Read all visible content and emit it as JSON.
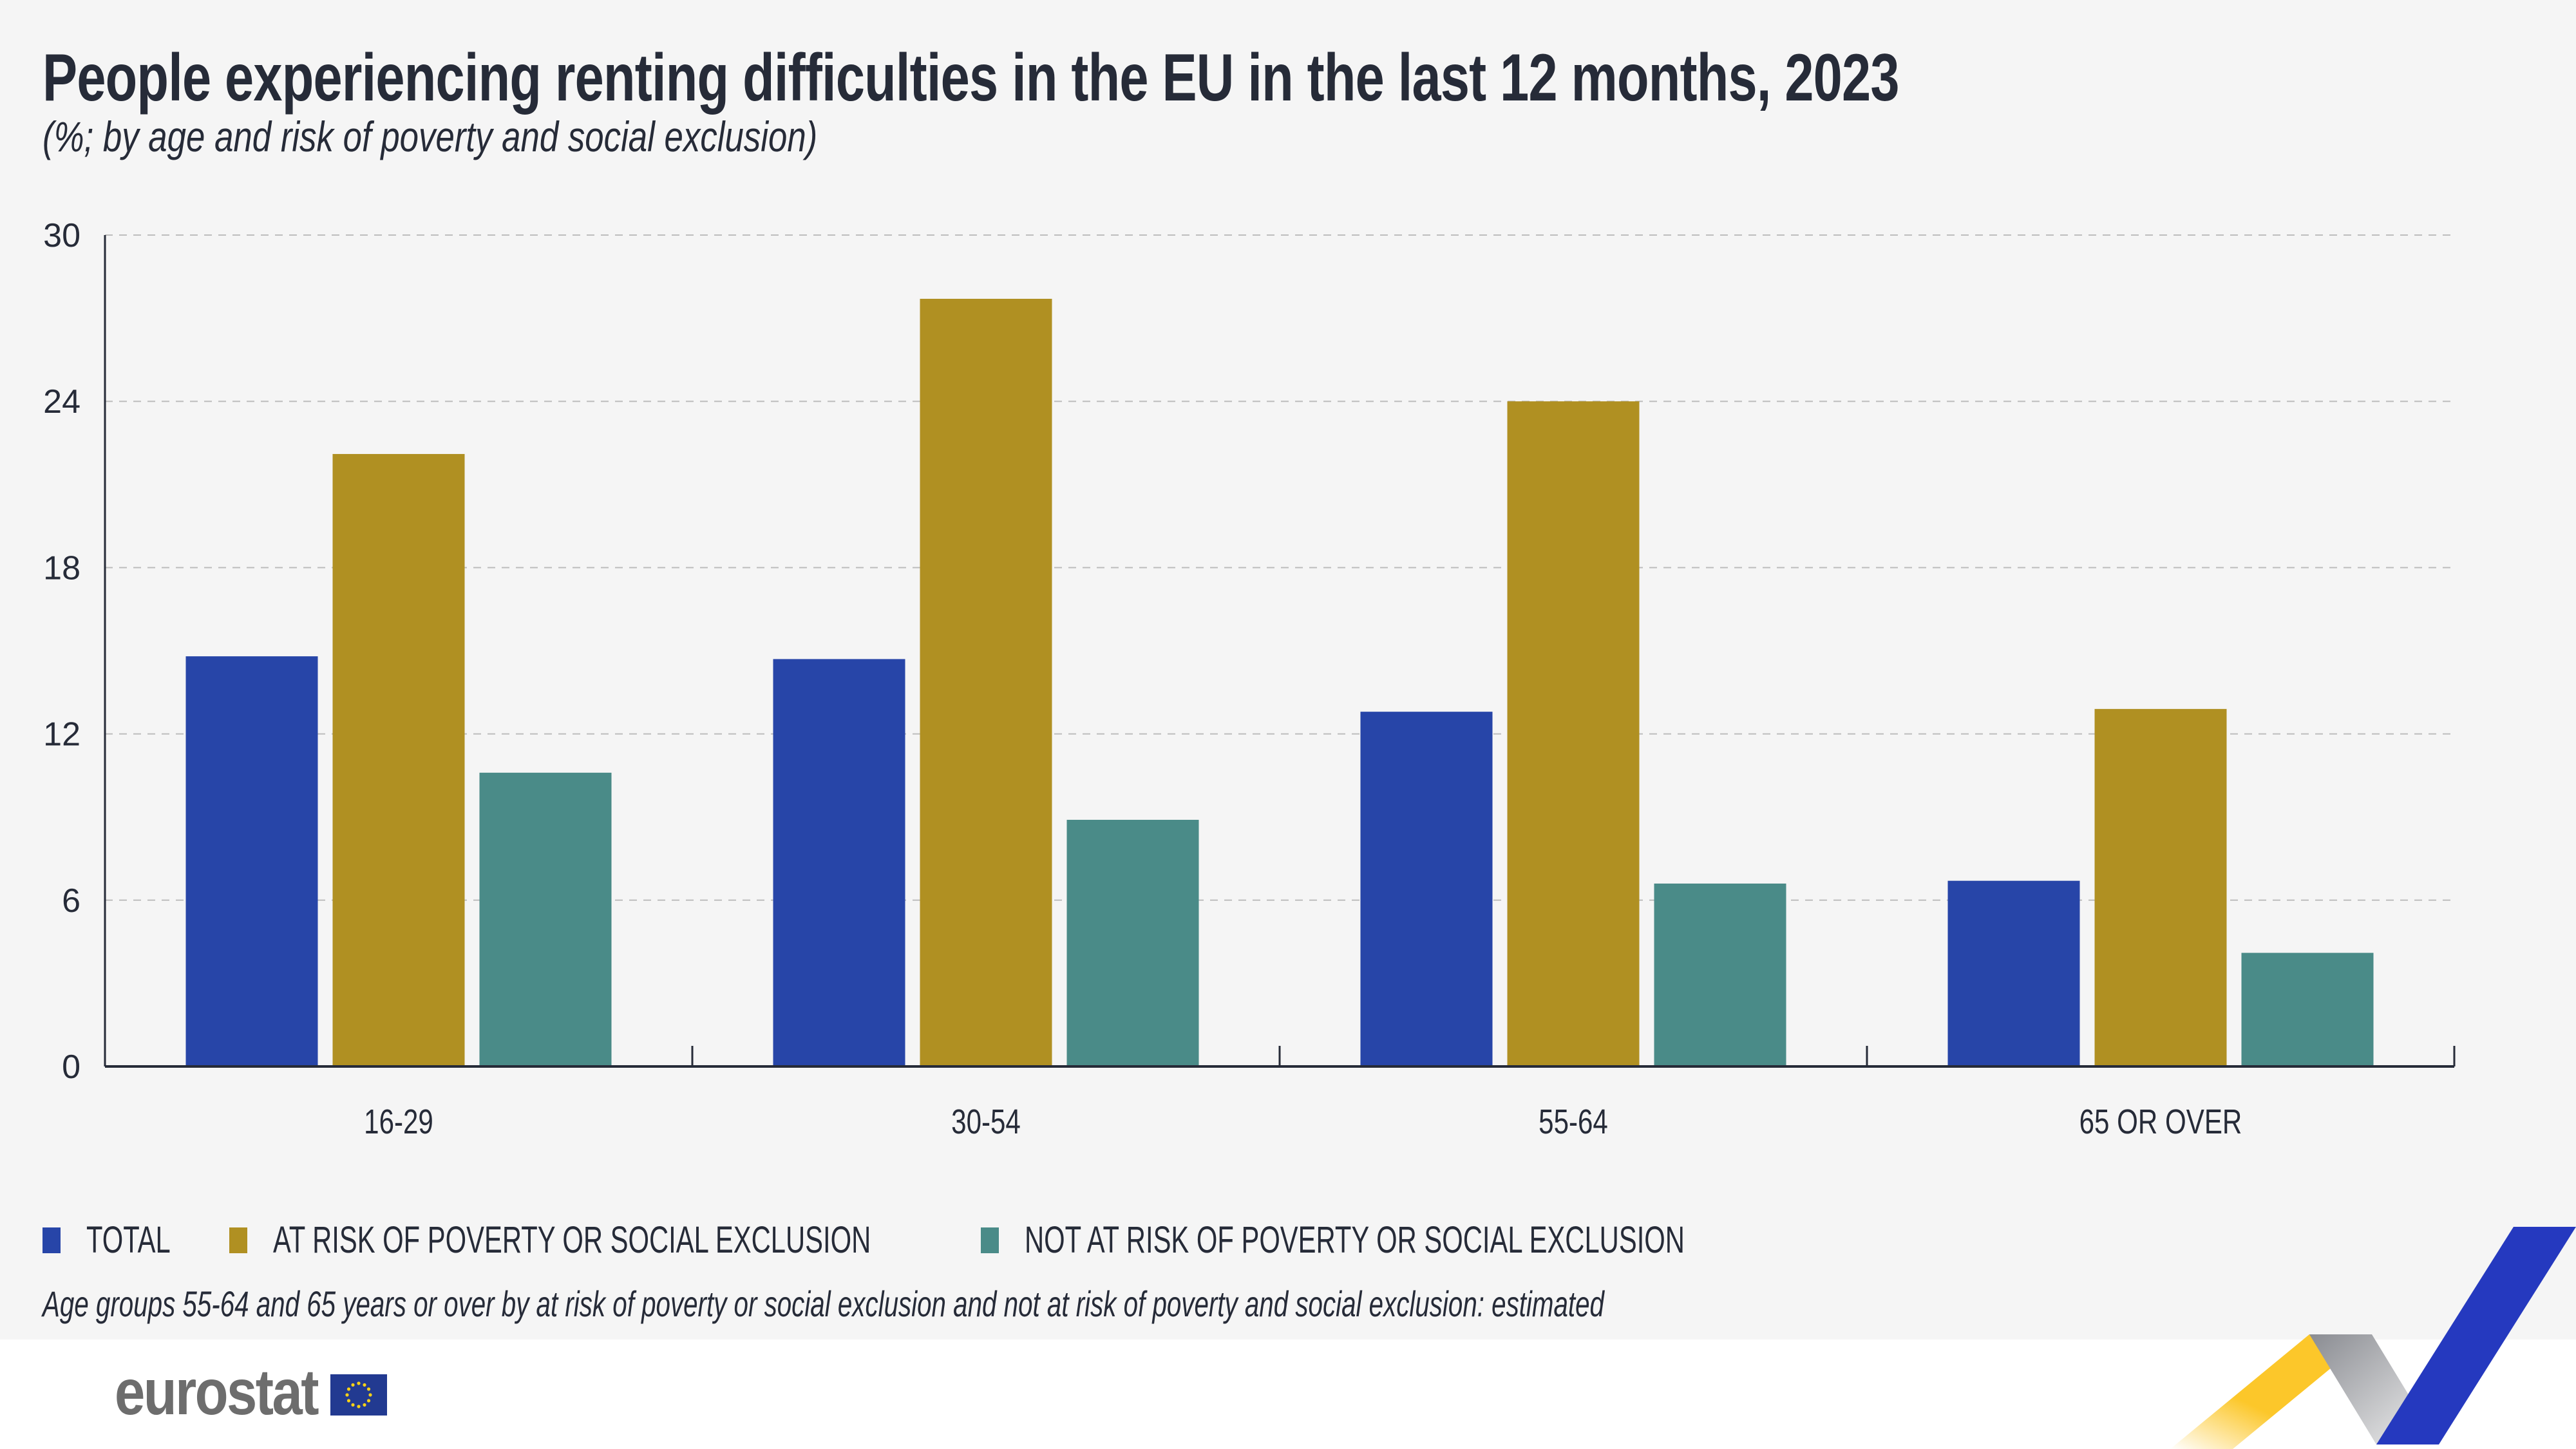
{
  "title": "People experiencing renting difficulties in the EU in the last 12 months, 2023",
  "subtitle": "(%; by age and risk of poverty and social exclusion)",
  "footnote": "Age groups 55-64 and 65 years or over by at risk of poverty or social exclusion and not at risk of poverty and social exclusion: estimated",
  "logo": {
    "text": "eurostat",
    "icon": "eu-flag-icon"
  },
  "colors": {
    "total": "#2745a8",
    "at_risk": "#b09022",
    "not_at_risk": "#4a8b88",
    "text": "#262b38",
    "grid": "#bdbdbd"
  },
  "chart_data": {
    "type": "bar",
    "title": "People experiencing renting difficulties in the EU in the last 12 months, 2023",
    "subtitle": "(%; by age and risk of poverty and social exclusion)",
    "xlabel": "",
    "ylabel": "",
    "categories": [
      "16-29",
      "30-54",
      "55-64",
      "65 OR OVER"
    ],
    "series": [
      {
        "name": "TOTAL",
        "color": "#2745a8",
        "values": [
          14.8,
          14.7,
          12.8,
          6.7
        ]
      },
      {
        "name": "AT RISK OF POVERTY OR SOCIAL EXCLUSION",
        "color": "#b09022",
        "values": [
          22.1,
          27.7,
          24.0,
          12.9
        ]
      },
      {
        "name": "NOT AT RISK OF POVERTY OR SOCIAL EXCLUSION",
        "color": "#4a8b88",
        "values": [
          10.6,
          8.9,
          6.6,
          4.1
        ]
      }
    ],
    "ylim": [
      0,
      30
    ],
    "yticks": [
      0,
      6,
      12,
      18,
      24,
      30
    ],
    "grid": true,
    "legend_position": "bottom-left"
  }
}
